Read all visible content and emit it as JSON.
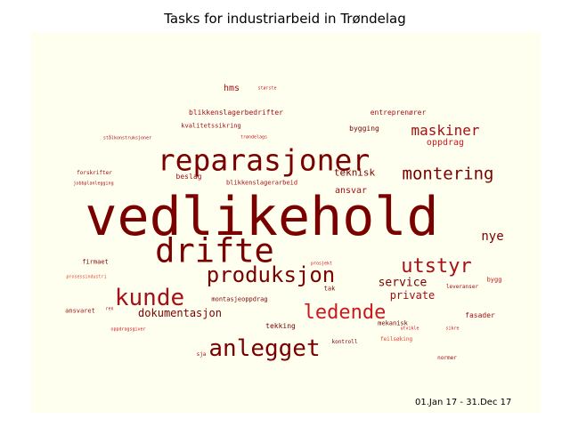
{
  "chart_data": {
    "type": "wordcloud",
    "title": "Tasks for industriarbeid in Trøndelag",
    "date_range": "01.Jan 17 - 31.Dec 17",
    "background_color": "#fffff0",
    "colors": {
      "dark": "#7a0000",
      "medium": "#a50f15",
      "bright": "#cb181d",
      "light": "#ef3b2c"
    },
    "words": [
      {
        "text": "vedlikehold",
        "weight": 100,
        "color": "dark"
      },
      {
        "text": "drifte",
        "weight": 62,
        "color": "dark"
      },
      {
        "text": "reparasjoner",
        "weight": 55,
        "color": "dark"
      },
      {
        "text": "anlegget",
        "weight": 44,
        "color": "dark"
      },
      {
        "text": "kunde",
        "weight": 44,
        "color": "medium"
      },
      {
        "text": "produksjon",
        "weight": 40,
        "color": "dark"
      },
      {
        "text": "ledende",
        "weight": 36,
        "color": "bright"
      },
      {
        "text": "utstyr",
        "weight": 36,
        "color": "medium"
      },
      {
        "text": "montering",
        "weight": 32,
        "color": "dark"
      },
      {
        "text": "maskiner",
        "weight": 26,
        "color": "medium"
      },
      {
        "text": "nye",
        "weight": 24,
        "color": "dark"
      },
      {
        "text": "service",
        "weight": 22,
        "color": "dark"
      },
      {
        "text": "dokumentasjon",
        "weight": 20,
        "color": "dark"
      },
      {
        "text": "private",
        "weight": 20,
        "color": "medium"
      },
      {
        "text": "teknisk",
        "weight": 18,
        "color": "dark"
      },
      {
        "text": "oppdrag",
        "weight": 16,
        "color": "bright"
      },
      {
        "text": "ansvar",
        "weight": 16,
        "color": "medium"
      },
      {
        "text": "hms",
        "weight": 16,
        "color": "medium"
      },
      {
        "text": "beslag",
        "weight": 14,
        "color": "medium"
      },
      {
        "text": "blikkenslagerbedrifter",
        "weight": 14,
        "color": "medium"
      },
      {
        "text": "entreprenører",
        "weight": 14,
        "color": "medium"
      },
      {
        "text": "bygging",
        "weight": 13,
        "color": "dark"
      },
      {
        "text": "tekking",
        "weight": 13,
        "color": "dark"
      },
      {
        "text": "fasader",
        "weight": 13,
        "color": "medium"
      },
      {
        "text": "firmaet",
        "weight": 12,
        "color": "dark"
      },
      {
        "text": "ansvaret",
        "weight": 12,
        "color": "medium"
      },
      {
        "text": "blikkenslagerarbeid",
        "weight": 12,
        "color": "medium"
      },
      {
        "text": "kvalitetssikring",
        "weight": 12,
        "color": "medium"
      },
      {
        "text": "tak",
        "weight": 12,
        "color": "dark"
      },
      {
        "text": "bygg",
        "weight": 12,
        "color": "bright"
      },
      {
        "text": "montasjeoppdrag",
        "weight": 11,
        "color": "dark"
      },
      {
        "text": "mekanisk",
        "weight": 11,
        "color": "dark"
      },
      {
        "text": "leveranser",
        "weight": 10,
        "color": "medium"
      },
      {
        "text": "sja",
        "weight": 10,
        "color": "medium"
      },
      {
        "text": "kontroll",
        "weight": 10,
        "color": "dark"
      },
      {
        "text": "feilsøking",
        "weight": 10,
        "color": "light"
      },
      {
        "text": "normer",
        "weight": 10,
        "color": "medium"
      },
      {
        "text": "forskrifter",
        "weight": 10,
        "color": "medium"
      },
      {
        "text": "største",
        "weight": 9,
        "color": "bright"
      },
      {
        "text": "trøndelags",
        "weight": 9,
        "color": "bright"
      },
      {
        "text": "stålkonstruksjoner",
        "weight": 9,
        "color": "medium"
      },
      {
        "text": "jobbplanlegging",
        "weight": 8,
        "color": "medium"
      },
      {
        "text": "prosessindustri",
        "weight": 8,
        "color": "light"
      },
      {
        "text": "oppdragsgiver",
        "weight": 8,
        "color": "bright"
      },
      {
        "text": "prosjekt",
        "weight": 8,
        "color": "bright"
      },
      {
        "text": "ren",
        "weight": 8,
        "color": "medium"
      },
      {
        "text": "utvikle",
        "weight": 7,
        "color": "bright"
      },
      {
        "text": "sikre",
        "weight": 7,
        "color": "bright"
      }
    ]
  }
}
